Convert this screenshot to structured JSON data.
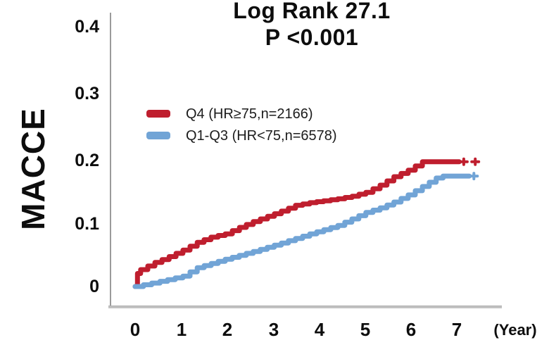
{
  "title": {
    "line1": "Log Rank 27.1",
    "line2": "P <0.001"
  },
  "y_axis": {
    "label": "MACCE",
    "ticks": [
      "0.4",
      "0.3",
      "0.2",
      "0.1",
      "0"
    ]
  },
  "x_axis": {
    "ticks": [
      "0",
      "1",
      "2",
      "3",
      "4",
      "5",
      "6",
      "7"
    ],
    "unit_label": "(Year)"
  },
  "legend": [
    {
      "label": "Q4 (HR≥75,n=2166)",
      "color": "#bf1e2e"
    },
    {
      "label": "Q1-Q3 (HR<75,n=6578)",
      "color": "#71a4d6"
    }
  ],
  "colors": {
    "q4_red": "#bf1e2e",
    "q1q3_blue": "#71a4d6",
    "axis_gray": "#9b9b9b",
    "text_black": "#0d0d0d"
  },
  "chart_data": {
    "type": "line",
    "subtype": "kaplan-meier-cumulative-incidence-step",
    "title": "Log Rank 27.1",
    "subtitle": "P <0.001",
    "xlabel": "(Year)",
    "ylabel": "MACCE",
    "xlim": [
      0,
      7.6
    ],
    "ylim": [
      0,
      0.4
    ],
    "x_ticks": [
      0,
      1,
      2,
      3,
      4,
      5,
      6,
      7
    ],
    "y_ticks": [
      0,
      0.1,
      0.2,
      0.3,
      0.4
    ],
    "grid": false,
    "legend_position": "upper-left-inside",
    "stats": {
      "log_rank": 27.1,
      "p_value": "<0.001"
    },
    "series": [
      {
        "name": "Q4 (HR≥75,n=2166)",
        "color": "#bf1e2e",
        "points": [
          [
            0,
            0
          ],
          [
            0.05,
            0.02
          ],
          [
            0.12,
            0.026
          ],
          [
            0.43,
            0.037
          ],
          [
            0.74,
            0.046
          ],
          [
            1.04,
            0.056
          ],
          [
            1.35,
            0.068
          ],
          [
            1.65,
            0.076
          ],
          [
            1.96,
            0.081
          ],
          [
            2.27,
            0.091
          ],
          [
            2.57,
            0.1
          ],
          [
            2.88,
            0.108
          ],
          [
            3.18,
            0.116
          ],
          [
            3.49,
            0.125
          ],
          [
            3.8,
            0.129
          ],
          [
            4.1,
            0.132
          ],
          [
            4.41,
            0.135
          ],
          [
            4.72,
            0.139
          ],
          [
            5.02,
            0.145
          ],
          [
            5.33,
            0.156
          ],
          [
            5.63,
            0.169
          ],
          [
            5.94,
            0.179
          ],
          [
            6.25,
            0.192
          ],
          [
            7.05,
            0.192
          ]
        ],
        "censor_marks_x": [
          7.15,
          7.4
        ]
      },
      {
        "name": "Q1-Q3 (HR<75,n=6578)",
        "color": "#71a4d6",
        "points": [
          [
            0,
            0
          ],
          [
            0.54,
            0.008
          ],
          [
            1.04,
            0.016
          ],
          [
            1.35,
            0.029
          ],
          [
            1.96,
            0.042
          ],
          [
            2.57,
            0.054
          ],
          [
            3.18,
            0.067
          ],
          [
            3.8,
            0.081
          ],
          [
            4.41,
            0.094
          ],
          [
            5.02,
            0.114
          ],
          [
            5.33,
            0.121
          ],
          [
            5.63,
            0.13
          ],
          [
            5.94,
            0.141
          ],
          [
            6.25,
            0.154
          ],
          [
            6.55,
            0.167
          ],
          [
            6.7,
            0.17
          ],
          [
            7.27,
            0.17
          ]
        ],
        "censor_marks_x": [
          7.37
        ]
      }
    ]
  }
}
